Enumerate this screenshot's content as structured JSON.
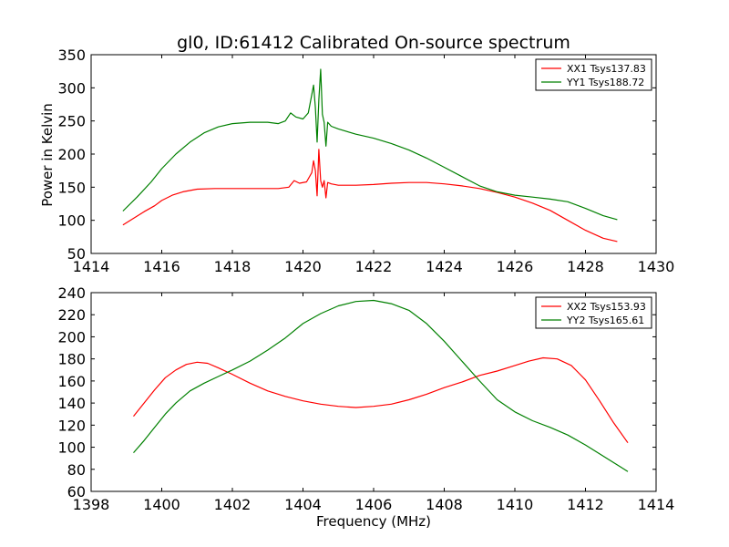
{
  "figure": {
    "title": "gl0, ID:61412 Calibrated On-source spectrum",
    "ylabel": "Power in Kelvin",
    "xlabel": "Frequency (MHz)"
  },
  "chart_data": [
    {
      "type": "line",
      "title": "gl0, ID:61412 Calibrated On-source spectrum",
      "xlabel": "",
      "ylabel": "Power in Kelvin",
      "xlim": [
        1414,
        1430
      ],
      "ylim": [
        50,
        350
      ],
      "xticks": [
        1414,
        1416,
        1418,
        1420,
        1422,
        1424,
        1426,
        1428,
        1430
      ],
      "yticks": [
        50,
        100,
        150,
        200,
        250,
        300,
        350
      ],
      "legend_position": "top-right",
      "grid": false,
      "series": [
        {
          "name": "XX1 Tsys137.83",
          "color": "#ff0000",
          "x": [
            1414.9,
            1415.2,
            1415.5,
            1415.8,
            1416.0,
            1416.3,
            1416.6,
            1417.0,
            1417.5,
            1418.0,
            1418.5,
            1419.0,
            1419.3,
            1419.6,
            1419.75,
            1419.9,
            1420.1,
            1420.25,
            1420.3,
            1420.35,
            1420.4,
            1420.45,
            1420.5,
            1420.55,
            1420.6,
            1420.65,
            1420.7,
            1420.8,
            1421.0,
            1421.5,
            1422.0,
            1422.5,
            1423.0,
            1423.5,
            1424.0,
            1424.5,
            1425.0,
            1425.5,
            1426.0,
            1426.5,
            1427.0,
            1427.5,
            1428.0,
            1428.5,
            1428.9
          ],
          "y": [
            93,
            103,
            113,
            122,
            130,
            138,
            143,
            147,
            148,
            148,
            148,
            148,
            148,
            150,
            160,
            156,
            158,
            172,
            190,
            175,
            137,
            207,
            160,
            150,
            160,
            134,
            157,
            155,
            153,
            153,
            154,
            156,
            157,
            157,
            155,
            152,
            148,
            142,
            135,
            126,
            115,
            100,
            85,
            73,
            68
          ]
        },
        {
          "name": "YY1 Tsys188.72",
          "color": "#008000",
          "x": [
            1414.9,
            1415.3,
            1415.7,
            1416.0,
            1416.4,
            1416.8,
            1417.2,
            1417.6,
            1418.0,
            1418.5,
            1419.0,
            1419.3,
            1419.5,
            1419.65,
            1419.8,
            1420.0,
            1420.15,
            1420.25,
            1420.3,
            1420.35,
            1420.4,
            1420.45,
            1420.5,
            1420.55,
            1420.6,
            1420.65,
            1420.7,
            1420.8,
            1421.0,
            1421.5,
            1422.0,
            1422.5,
            1423.0,
            1423.5,
            1424.0,
            1424.5,
            1425.0,
            1425.5,
            1426.0,
            1426.5,
            1427.0,
            1427.5,
            1428.0,
            1428.5,
            1428.9
          ],
          "y": [
            114,
            135,
            158,
            178,
            200,
            218,
            232,
            241,
            246,
            248,
            248,
            246,
            250,
            262,
            256,
            253,
            262,
            290,
            304,
            270,
            218,
            282,
            328,
            260,
            248,
            212,
            248,
            242,
            238,
            230,
            224,
            216,
            206,
            194,
            180,
            166,
            152,
            143,
            138,
            135,
            132,
            128,
            118,
            107,
            101
          ]
        }
      ]
    },
    {
      "type": "line",
      "title": "",
      "xlabel": "Frequency (MHz)",
      "ylabel": "",
      "xlim": [
        1398,
        1414
      ],
      "ylim": [
        60,
        240
      ],
      "xticks": [
        1398,
        1400,
        1402,
        1404,
        1406,
        1408,
        1410,
        1412,
        1414
      ],
      "yticks": [
        60,
        80,
        100,
        120,
        140,
        160,
        180,
        200,
        220,
        240
      ],
      "legend_position": "top-right",
      "grid": false,
      "series": [
        {
          "name": "XX2 Tsys153.93",
          "color": "#ff0000",
          "x": [
            1399.2,
            1399.5,
            1399.8,
            1400.1,
            1400.4,
            1400.7,
            1401.0,
            1401.3,
            1401.6,
            1402.0,
            1402.5,
            1403.0,
            1403.5,
            1404.0,
            1404.5,
            1405.0,
            1405.5,
            1406.0,
            1406.5,
            1407.0,
            1407.5,
            1408.0,
            1408.5,
            1409.0,
            1409.5,
            1410.0,
            1410.4,
            1410.8,
            1411.2,
            1411.6,
            1412.0,
            1412.4,
            1412.8,
            1413.2
          ],
          "y": [
            128,
            140,
            152,
            163,
            170,
            175,
            177,
            176,
            172,
            166,
            158,
            151,
            146,
            142,
            139,
            137,
            136,
            137,
            139,
            143,
            148,
            154,
            159,
            165,
            169,
            174,
            178,
            181,
            180,
            174,
            161,
            142,
            122,
            104
          ]
        },
        {
          "name": "YY2 Tsys165.61",
          "color": "#008000",
          "x": [
            1399.2,
            1399.5,
            1399.8,
            1400.1,
            1400.4,
            1400.8,
            1401.2,
            1401.6,
            1402.0,
            1402.5,
            1403.0,
            1403.5,
            1404.0,
            1404.5,
            1405.0,
            1405.5,
            1406.0,
            1406.5,
            1407.0,
            1407.5,
            1408.0,
            1408.5,
            1409.0,
            1409.5,
            1410.0,
            1410.5,
            1411.0,
            1411.5,
            1412.0,
            1412.5,
            1413.0,
            1413.2
          ],
          "y": [
            95,
            106,
            118,
            130,
            140,
            151,
            158,
            164,
            170,
            178,
            188,
            199,
            212,
            221,
            228,
            232,
            233,
            230,
            224,
            212,
            196,
            178,
            160,
            143,
            132,
            124,
            118,
            111,
            102,
            92,
            82,
            78
          ]
        }
      ]
    }
  ]
}
